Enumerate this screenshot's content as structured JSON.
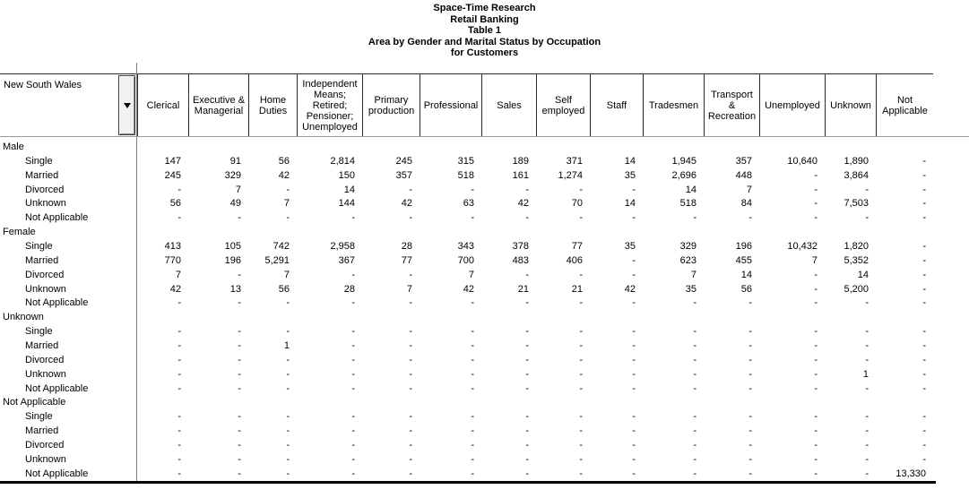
{
  "titles": [
    "Space-Time Research",
    "Retail Banking",
    "Table 1",
    "Area by Gender and Marital Status by Occupation",
    "for Customers"
  ],
  "table": {
    "area": "New South Wales",
    "dropdown_icon": "chevron-down",
    "columns": [
      "Clerical",
      "Executive & Managerial",
      "Home Duties",
      "Independent Means; Retired; Pensioner; Unemployed",
      "Primary production",
      "Professional",
      "Sales",
      "Self employed",
      "Staff",
      "Tradesmen",
      "Transport & Recreation",
      "Unemployed",
      "Unknown",
      "Not Applicable"
    ],
    "sections": [
      {
        "label": "Male",
        "rows": [
          {
            "label": "Single",
            "values": [
              "147",
              "91",
              "56",
              "2,814",
              "245",
              "315",
              "189",
              "371",
              "14",
              "1,945",
              "357",
              "10,640",
              "1,890",
              "-"
            ]
          },
          {
            "label": "Married",
            "values": [
              "245",
              "329",
              "42",
              "150",
              "357",
              "518",
              "161",
              "1,274",
              "35",
              "2,696",
              "448",
              "-",
              "3,864",
              "-"
            ]
          },
          {
            "label": "Divorced",
            "values": [
              "-",
              "7",
              "-",
              "14",
              "-",
              "-",
              "-",
              "-",
              "-",
              "14",
              "7",
              "-",
              "-",
              "-"
            ]
          },
          {
            "label": "Unknown",
            "values": [
              "56",
              "49",
              "7",
              "144",
              "42",
              "63",
              "42",
              "70",
              "14",
              "518",
              "84",
              "-",
              "7,503",
              "-"
            ]
          },
          {
            "label": "Not Applicable",
            "values": [
              "-",
              "-",
              "-",
              "-",
              "-",
              "-",
              "-",
              "-",
              "-",
              "-",
              "-",
              "-",
              "-",
              "-"
            ]
          }
        ]
      },
      {
        "label": "Female",
        "rows": [
          {
            "label": "Single",
            "values": [
              "413",
              "105",
              "742",
              "2,958",
              "28",
              "343",
              "378",
              "77",
              "35",
              "329",
              "196",
              "10,432",
              "1,820",
              "-"
            ]
          },
          {
            "label": "Married",
            "values": [
              "770",
              "196",
              "5,291",
              "367",
              "77",
              "700",
              "483",
              "406",
              "-",
              "623",
              "455",
              "7",
              "5,352",
              "-"
            ]
          },
          {
            "label": "Divorced",
            "values": [
              "7",
              "-",
              "7",
              "-",
              "-",
              "7",
              "-",
              "-",
              "-",
              "7",
              "14",
              "-",
              "14",
              "-"
            ]
          },
          {
            "label": "Unknown",
            "values": [
              "42",
              "13",
              "56",
              "28",
              "7",
              "42",
              "21",
              "21",
              "42",
              "35",
              "56",
              "-",
              "5,200",
              "-"
            ]
          },
          {
            "label": "Not Applicable",
            "values": [
              "-",
              "-",
              "-",
              "-",
              "-",
              "-",
              "-",
              "-",
              "-",
              "-",
              "-",
              "-",
              "-",
              "-"
            ]
          }
        ]
      },
      {
        "label": "Unknown",
        "rows": [
          {
            "label": "Single",
            "values": [
              "-",
              "-",
              "-",
              "-",
              "-",
              "-",
              "-",
              "-",
              "-",
              "-",
              "-",
              "-",
              "-",
              "-"
            ]
          },
          {
            "label": "Married",
            "values": [
              "-",
              "-",
              "1",
              "-",
              "-",
              "-",
              "-",
              "-",
              "-",
              "-",
              "-",
              "-",
              "-",
              "-"
            ]
          },
          {
            "label": "Divorced",
            "values": [
              "-",
              "-",
              "-",
              "-",
              "-",
              "-",
              "-",
              "-",
              "-",
              "-",
              "-",
              "-",
              "-",
              "-"
            ]
          },
          {
            "label": "Unknown",
            "values": [
              "-",
              "-",
              "-",
              "-",
              "-",
              "-",
              "-",
              "-",
              "-",
              "-",
              "-",
              "-",
              "1",
              "-"
            ]
          },
          {
            "label": "Not Applicable",
            "values": [
              "-",
              "-",
              "-",
              "-",
              "-",
              "-",
              "-",
              "-",
              "-",
              "-",
              "-",
              "-",
              "-",
              "-"
            ]
          }
        ]
      },
      {
        "label": "Not Applicable",
        "rows": [
          {
            "label": "Single",
            "values": [
              "-",
              "-",
              "-",
              "-",
              "-",
              "-",
              "-",
              "-",
              "-",
              "-",
              "-",
              "-",
              "-",
              "-"
            ]
          },
          {
            "label": "Married",
            "values": [
              "-",
              "-",
              "-",
              "-",
              "-",
              "-",
              "-",
              "-",
              "-",
              "-",
              "-",
              "-",
              "-",
              "-"
            ]
          },
          {
            "label": "Divorced",
            "values": [
              "-",
              "-",
              "-",
              "-",
              "-",
              "-",
              "-",
              "-",
              "-",
              "-",
              "-",
              "-",
              "-",
              "-"
            ]
          },
          {
            "label": "Unknown",
            "values": [
              "-",
              "-",
              "-",
              "-",
              "-",
              "-",
              "-",
              "-",
              "-",
              "-",
              "-",
              "-",
              "-",
              "-"
            ]
          },
          {
            "label": "Not Applicable",
            "values": [
              "-",
              "-",
              "-",
              "-",
              "-",
              "-",
              "-",
              "-",
              "-",
              "-",
              "-",
              "-",
              "-",
              "13,330"
            ]
          }
        ]
      }
    ]
  }
}
